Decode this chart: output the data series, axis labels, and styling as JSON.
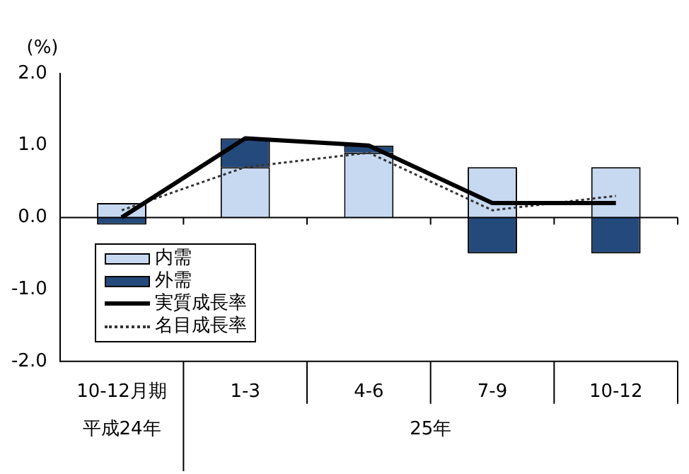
{
  "chart_data": {
    "type": "bar",
    "ylabel": "(%)",
    "categories": [
      "10-12月期",
      "1-3",
      "4-6",
      "7-9",
      "10-12"
    ],
    "annotations": [
      "平成24年",
      "25年"
    ],
    "stacked": true,
    "legend": "bottom left",
    "ylim": [
      -2,
      2
    ],
    "yticks": [
      {
        "value": 2,
        "label": "2.0"
      },
      {
        "value": 1,
        "label": "1.0"
      },
      {
        "value": 0,
        "label": "0.0"
      },
      {
        "value": -1,
        "label": "-1.0"
      },
      {
        "value": -2,
        "label": "-2.0"
      }
    ],
    "series": [
      {
        "name": "内需",
        "color": "#c6d9f1",
        "values": [
          0.2,
          0.7,
          0.9,
          0.7,
          0.7
        ]
      },
      {
        "name": "外需",
        "color": "#244a7c",
        "values": [
          -0.1,
          0.4,
          0.1,
          -0.5,
          -0.5
        ]
      },
      {
        "name": "実質成長率",
        "type": "line",
        "color": "#000000",
        "line_style": "solid",
        "values": [
          0.0,
          1.1,
          1.0,
          0.2,
          0.2
        ]
      },
      {
        "name": "名目成長率",
        "type": "line",
        "color": "#333333",
        "line_style": "dotted",
        "values": [
          0.1,
          0.7,
          0.9,
          0.1,
          0.3
        ]
      }
    ]
  }
}
